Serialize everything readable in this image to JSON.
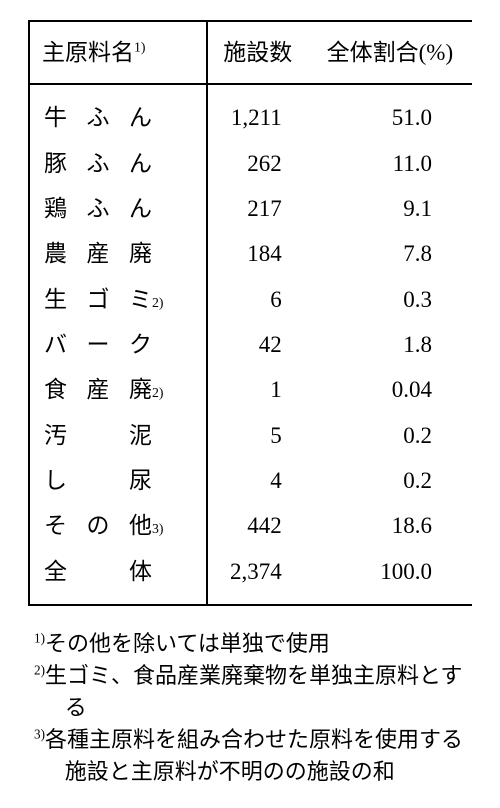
{
  "table": {
    "headers": {
      "col1": "主原料名",
      "col1_sup": "1)",
      "col2": "施設数",
      "col3": "全体割合(%)"
    },
    "rows": [
      {
        "name_chars": [
          "牛",
          "ふ",
          "ん"
        ],
        "sup": "",
        "count": "1,211",
        "pct": "51.0"
      },
      {
        "name_chars": [
          "豚",
          "ふ",
          "ん"
        ],
        "sup": "",
        "count": "262",
        "pct": "11.0"
      },
      {
        "name_chars": [
          "鶏",
          "ふ",
          "ん"
        ],
        "sup": "",
        "count": "217",
        "pct": "9.1"
      },
      {
        "name_chars": [
          "農",
          "産",
          "廃"
        ],
        "sup": "",
        "count": "184",
        "pct": "7.8"
      },
      {
        "name_chars": [
          "生",
          "ゴ",
          "ミ"
        ],
        "sup": "2)",
        "count": "6",
        "pct": "0.3"
      },
      {
        "name_chars": [
          "バ",
          "ー",
          "ク"
        ],
        "sup": "",
        "count": "42",
        "pct": "1.8"
      },
      {
        "name_chars": [
          "食",
          "産",
          "廃"
        ],
        "sup": "2)",
        "count": "1",
        "pct": "0.04"
      },
      {
        "name_chars": [
          "汚",
          "",
          "泥"
        ],
        "sup": "",
        "count": "5",
        "pct": "0.2"
      },
      {
        "name_chars": [
          "し",
          "",
          "尿"
        ],
        "sup": "",
        "count": "4",
        "pct": "0.2"
      },
      {
        "name_chars": [
          "そ",
          "の",
          "他"
        ],
        "sup": "3)",
        "count": "442",
        "pct": "18.6"
      },
      {
        "name_chars": [
          "全",
          "",
          "体"
        ],
        "sup": "",
        "count": "2,374",
        "pct": "100.0"
      }
    ]
  },
  "notes": [
    {
      "sup": "1)",
      "text": "その他を除いては単独で使用"
    },
    {
      "sup": "2)",
      "text": "生ゴミ、食品産業廃棄物を単独主原料とする"
    },
    {
      "sup": "3)",
      "text": "各種主原料を組み合わせた原料を使用する施設と主原料が不明のの施設の和"
    }
  ]
}
